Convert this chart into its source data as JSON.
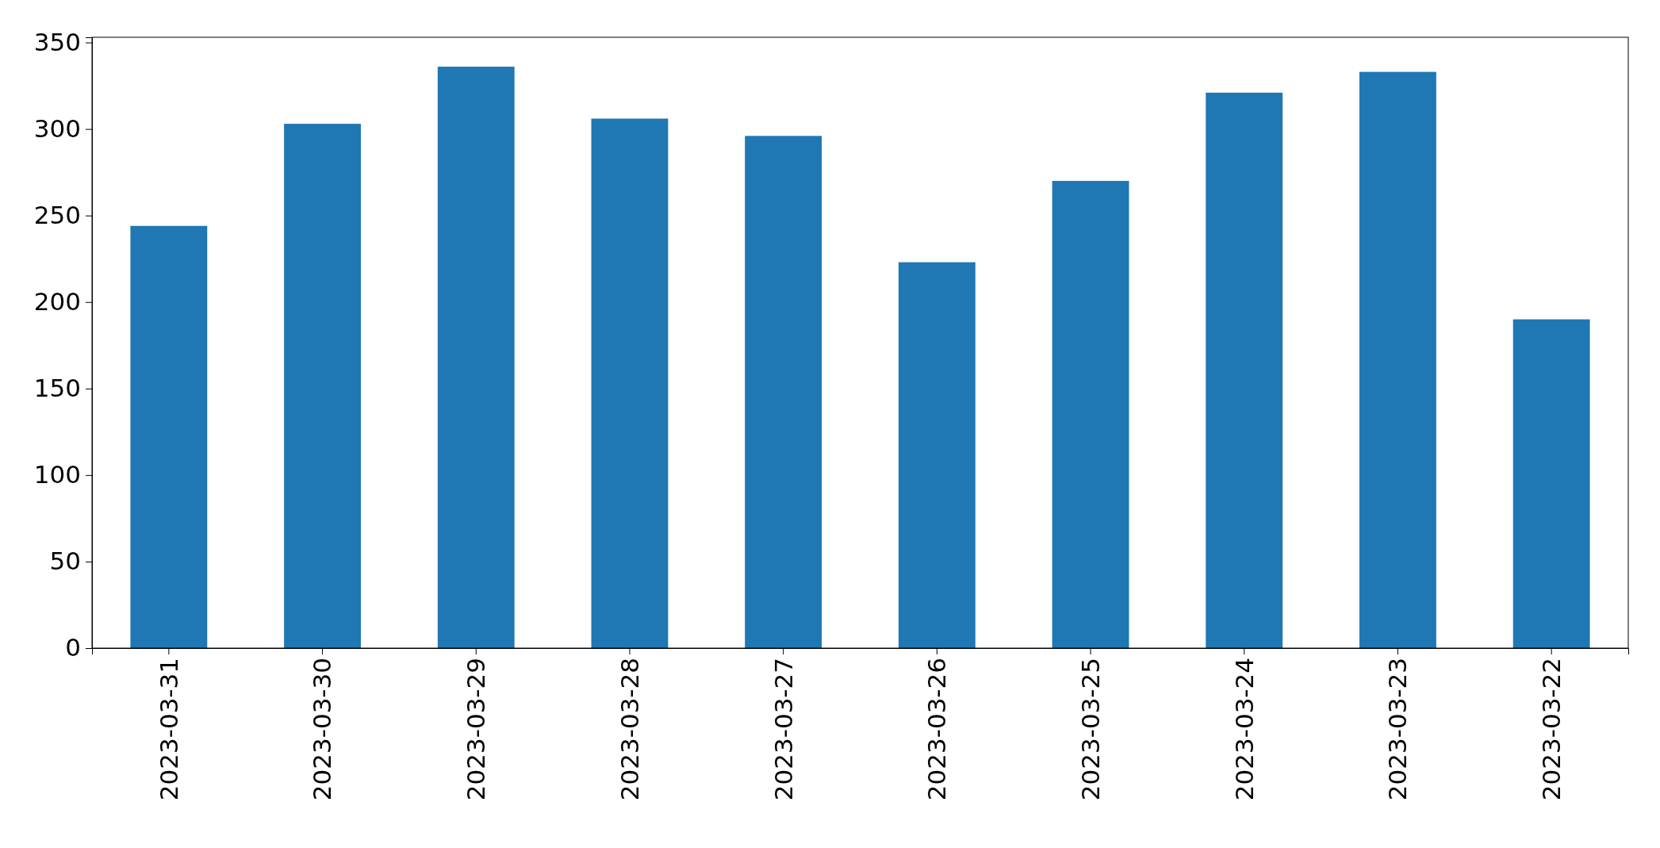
{
  "chart_data": {
    "type": "bar",
    "categories": [
      "2023-03-31",
      "2023-03-30",
      "2023-03-29",
      "2023-03-28",
      "2023-03-27",
      "2023-03-26",
      "2023-03-25",
      "2023-03-24",
      "2023-03-23",
      "2023-03-22"
    ],
    "values": [
      244,
      303,
      336,
      306,
      296,
      223,
      270,
      321,
      333,
      190
    ],
    "color": "#1f77b4",
    "ylim": [
      0,
      353
    ],
    "yticks": [
      0,
      50,
      100,
      150,
      200,
      250,
      300,
      350
    ],
    "grid": false
  }
}
